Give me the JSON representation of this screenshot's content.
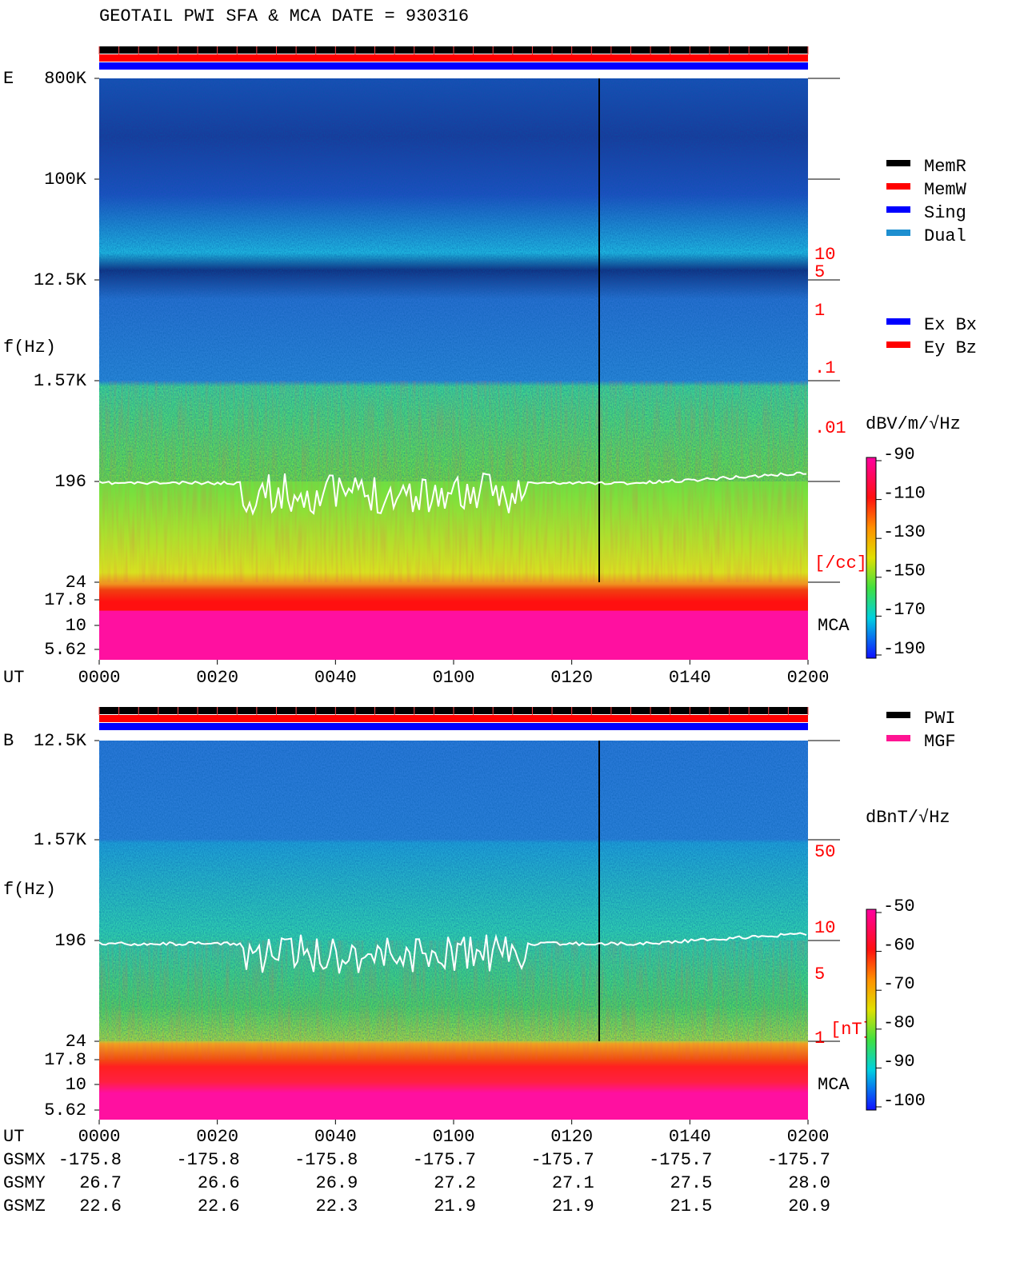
{
  "header": {
    "title": "GEOTAIL  PWI SFA & MCA   DATE = 930316"
  },
  "panels": [
    {
      "label": "E",
      "y_label": "f(Hz)",
      "yticks": [
        "800K",
        "100K",
        "12.5K",
        "1.57K",
        "196",
        "24",
        "17.8",
        "10",
        "5.62"
      ],
      "right_scale": [
        "10",
        "5",
        "1",
        ".1",
        ".01",
        "[/cc]"
      ],
      "mca_label": "MCA",
      "x_label": "UT",
      "xticks": [
        "0000",
        "0020",
        "0040",
        "0100",
        "0120",
        "0140",
        "0200"
      ],
      "legend": [
        {
          "name": "MemR",
          "color": "#000000"
        },
        {
          "name": "MemW",
          "color": "#ff0000"
        },
        {
          "name": "Sing",
          "color": "#0000ff"
        },
        {
          "name": "Dual",
          "color": "#1e8fd0"
        }
      ],
      "legend2": [
        {
          "name": "Ex Bx",
          "color": "#0000ff"
        },
        {
          "name": "Ey Bz",
          "color": "#ff0000"
        }
      ],
      "colorbar_unit": "dBV/m/√Hz",
      "colorbar_ticks": [
        -90,
        -110,
        -130,
        -150,
        -170,
        -190
      ]
    },
    {
      "label": "B",
      "y_label": "f(Hz)",
      "yticks": [
        "12.5K",
        "1.57K",
        "196",
        "24",
        "17.8",
        "10",
        "5.62"
      ],
      "right_scale": [
        "50",
        "10",
        "5",
        "1",
        "[nT]"
      ],
      "mca_label": "MCA",
      "x_label": "UT",
      "xticks": [
        "0000",
        "0020",
        "0040",
        "0100",
        "0120",
        "0140",
        "0200"
      ],
      "legend": [
        {
          "name": "PWI",
          "color": "#000000"
        },
        {
          "name": "MGF",
          "color": "#ff1493"
        }
      ],
      "colorbar_unit": "dBnT/√Hz",
      "colorbar_ticks": [
        -50,
        -60,
        -70,
        -80,
        -90,
        -100
      ]
    }
  ],
  "orbit": {
    "rows": [
      {
        "name": "GSMX",
        "values": [
          "-175.8",
          "-175.8",
          "-175.8",
          "-175.7",
          "-175.7",
          "-175.7",
          "-175.7"
        ]
      },
      {
        "name": "GSMY",
        "values": [
          "26.7",
          "26.6",
          "26.9",
          "27.2",
          "27.1",
          "27.5",
          "28.0"
        ]
      },
      {
        "name": "GSMZ",
        "values": [
          "22.6",
          "22.6",
          "22.3",
          "21.9",
          "21.9",
          "21.5",
          "20.9"
        ]
      }
    ]
  }
}
